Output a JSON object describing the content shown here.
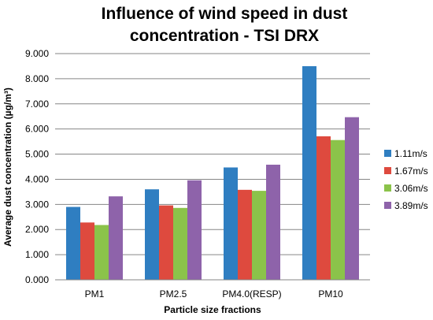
{
  "chart_data": {
    "type": "bar",
    "title": "Influence of wind speed in dust concentration -  TSI DRX",
    "title_lines": [
      "Influence of wind speed in dust",
      "concentration -  TSI DRX"
    ],
    "xlabel": "Particle size fractions",
    "ylabel": "Average dust concentration (µg/m³)",
    "ylim": [
      0,
      9
    ],
    "yticks": [
      0,
      1,
      2,
      3,
      4,
      5,
      6,
      7,
      8,
      9
    ],
    "ytick_labels": [
      "0.000",
      "1.000",
      "2.000",
      "3.000",
      "4.000",
      "5.000",
      "6.000",
      "7.000",
      "8.000",
      "9.000"
    ],
    "categories": [
      "PM1",
      "PM2.5",
      "PM4.0(RESP)",
      "PM10"
    ],
    "series": [
      {
        "name": "1.11m/s",
        "color": "#2f7ec1",
        "values": [
          2.9,
          3.6,
          4.47,
          8.5
        ]
      },
      {
        "name": "1.67m/s",
        "color": "#de4a3e",
        "values": [
          2.28,
          2.96,
          3.58,
          5.71
        ]
      },
      {
        "name": "3.06m/s",
        "color": "#8bc34a",
        "values": [
          2.18,
          2.86,
          3.54,
          5.56
        ]
      },
      {
        "name": "3.89m/s",
        "color": "#8e63aa",
        "values": [
          3.32,
          3.96,
          4.58,
          6.47
        ]
      }
    ],
    "grid": true,
    "legend_position": "right"
  }
}
